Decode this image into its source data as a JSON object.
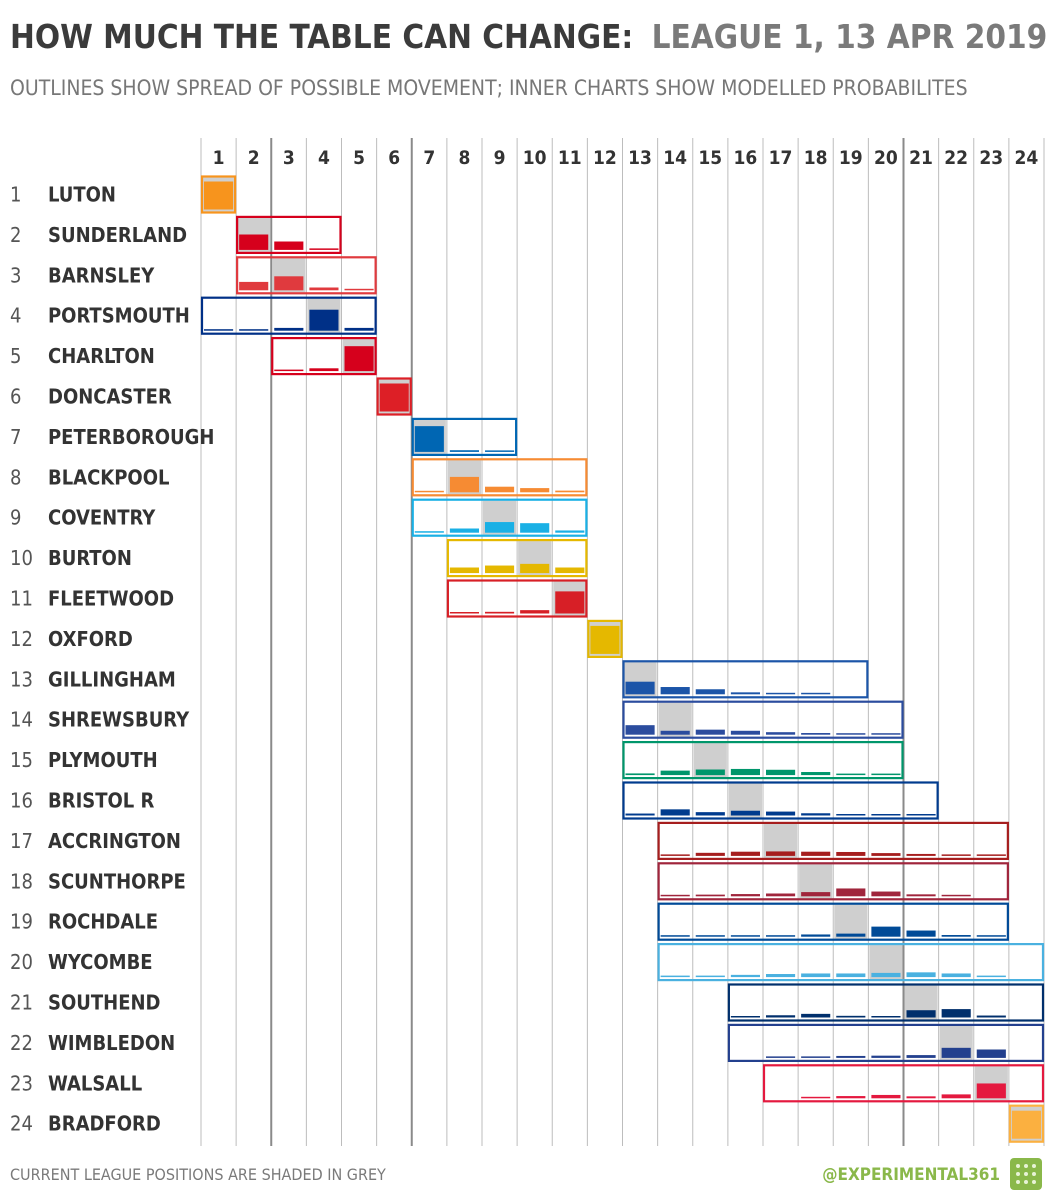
{
  "header": {
    "title_main": "HOW MUCH THE TABLE CAN CHANGE:",
    "title_sub": "LEAGUE 1, 13 APR 2019",
    "subtitle": "OUTLINES SHOW SPREAD OF POSSIBLE MOVEMENT;  INNER CHARTS SHOW MODELLED PROBABILITES"
  },
  "footer": {
    "note": "CURRENT LEAGUE POSITIONS ARE SHADED IN GREY",
    "credit": "@EXPERIMENTAL361",
    "logo_icon": "experimental361-logo-icon"
  },
  "chart_data": {
    "type": "heatmap",
    "columns": [
      "1",
      "2",
      "3",
      "4",
      "5",
      "6",
      "7",
      "8",
      "9",
      "10",
      "11",
      "12",
      "13",
      "14",
      "15",
      "16",
      "17",
      "18",
      "19",
      "20",
      "21",
      "22",
      "23",
      "24"
    ],
    "heavy_divider_after_columns": [
      2,
      6,
      20
    ],
    "value_scale": "probability of finishing position (0-1)",
    "teams": [
      {
        "rank": 1,
        "name": "LUTON",
        "color": "#f7941d",
        "min": 1,
        "max": 1,
        "probs": {
          "1": 1.0
        }
      },
      {
        "rank": 2,
        "name": "SUNDERLAND",
        "color": "#d6001c",
        "min": 2,
        "max": 4,
        "probs": {
          "2": 0.55,
          "3": 0.3,
          "4": 0.03
        }
      },
      {
        "rank": 3,
        "name": "BARNSLEY",
        "color": "#e03a3e",
        "min": 2,
        "max": 5,
        "probs": {
          "2": 0.3,
          "3": 0.5,
          "4": 0.1,
          "5": 0.01
        }
      },
      {
        "rank": 4,
        "name": "PORTSMOUTH",
        "color": "#003087",
        "min": 1,
        "max": 5,
        "probs": {
          "1": 0.01,
          "2": 0.04,
          "3": 0.1,
          "4": 0.75,
          "5": 0.1
        }
      },
      {
        "rank": 5,
        "name": "CHARLTON",
        "color": "#d6001c",
        "min": 3,
        "max": 5,
        "probs": {
          "3": 0.01,
          "4": 0.1,
          "5": 0.89
        }
      },
      {
        "rank": 6,
        "name": "DONCASTER",
        "color": "#dd1f26",
        "min": 6,
        "max": 6,
        "probs": {
          "6": 1.0
        }
      },
      {
        "rank": 7,
        "name": "PETERBOROUGH",
        "color": "#0066b3",
        "min": 7,
        "max": 9,
        "probs": {
          "7": 0.92,
          "8": 0.06,
          "9": 0.02
        }
      },
      {
        "rank": 8,
        "name": "BLACKPOOL",
        "color": "#f68b33",
        "min": 7,
        "max": 11,
        "probs": {
          "7": 0.04,
          "8": 0.55,
          "9": 0.2,
          "10": 0.15,
          "11": 0.06
        }
      },
      {
        "rank": 9,
        "name": "COVENTRY",
        "color": "#1ab0e5",
        "min": 7,
        "max": 11,
        "probs": {
          "7": 0.02,
          "8": 0.15,
          "9": 0.38,
          "10": 0.34,
          "11": 0.08
        }
      },
      {
        "rank": 10,
        "name": "BURTON",
        "color": "#e5b800",
        "min": 8,
        "max": 11,
        "probs": {
          "8": 0.2,
          "9": 0.27,
          "10": 0.33,
          "11": 0.2
        }
      },
      {
        "rank": 11,
        "name": "FLEETWOOD",
        "color": "#d71f26",
        "min": 8,
        "max": 11,
        "probs": {
          "8": 0.03,
          "9": 0.06,
          "10": 0.12,
          "11": 0.79
        }
      },
      {
        "rank": 12,
        "name": "OXFORD",
        "color": "#e5b800",
        "min": 12,
        "max": 12,
        "probs": {
          "12": 1.0
        }
      },
      {
        "rank": 13,
        "name": "GILLINGHAM",
        "color": "#1c55a8",
        "min": 13,
        "max": 19,
        "probs": {
          "13": 0.45,
          "14": 0.26,
          "15": 0.18,
          "16": 0.07,
          "17": 0.03,
          "18": 0.01
        }
      },
      {
        "rank": 14,
        "name": "SHREWSBURY",
        "color": "#2b4c9e",
        "min": 13,
        "max": 20,
        "probs": {
          "13": 0.34,
          "14": 0.14,
          "15": 0.18,
          "16": 0.14,
          "17": 0.09,
          "18": 0.06,
          "19": 0.04,
          "20": 0.01
        }
      },
      {
        "rank": 15,
        "name": "PLYMOUTH",
        "color": "#00966b",
        "min": 13,
        "max": 20,
        "probs": {
          "13": 0.06,
          "14": 0.16,
          "15": 0.2,
          "16": 0.22,
          "17": 0.19,
          "18": 0.11,
          "19": 0.05,
          "20": 0.01
        }
      },
      {
        "rank": 16,
        "name": "BRISTOL R",
        "color": "#003b8e",
        "min": 13,
        "max": 21,
        "probs": {
          "13": 0.07,
          "14": 0.22,
          "15": 0.12,
          "16": 0.17,
          "17": 0.14,
          "18": 0.08,
          "19": 0.05,
          "20": 0.03,
          "21": 0.01
        }
      },
      {
        "rank": 17,
        "name": "ACCRINGTON",
        "color": "#a61e1e",
        "min": 14,
        "max": 23,
        "probs": {
          "14": 0.03,
          "15": 0.11,
          "16": 0.15,
          "17": 0.16,
          "18": 0.15,
          "19": 0.14,
          "20": 0.1,
          "21": 0.07,
          "22": 0.04,
          "23": 0.02
        }
      },
      {
        "rank": 18,
        "name": "SCUNTHORPE",
        "color": "#a0253c",
        "min": 14,
        "max": 23,
        "probs": {
          "14": 0.02,
          "15": 0.06,
          "16": 0.08,
          "17": 0.1,
          "18": 0.15,
          "19": 0.28,
          "20": 0.17,
          "21": 0.07,
          "22": 0.02
        }
      },
      {
        "rank": 19,
        "name": "ROCHDALE",
        "color": "#004a97",
        "min": 14,
        "max": 23,
        "probs": {
          "14": 0.02,
          "15": 0.03,
          "16": 0.04,
          "17": 0.05,
          "18": 0.08,
          "19": 0.11,
          "20": 0.36,
          "21": 0.22,
          "22": 0.06,
          "23": 0.01
        }
      },
      {
        "rank": 20,
        "name": "WYCOMBE",
        "color": "#4ab1e0",
        "min": 14,
        "max": 24,
        "probs": {
          "14": 0.02,
          "15": 0.04,
          "16": 0.08,
          "17": 0.11,
          "18": 0.13,
          "19": 0.13,
          "20": 0.15,
          "21": 0.17,
          "22": 0.13,
          "23": 0.04
        }
      },
      {
        "rank": 21,
        "name": "SOUTHEND",
        "color": "#002f6c",
        "min": 16,
        "max": 24,
        "probs": {
          "16": 0.02,
          "17": 0.08,
          "18": 0.13,
          "19": 0.06,
          "20": 0.03,
          "21": 0.26,
          "22": 0.3,
          "23": 0.07
        }
      },
      {
        "rank": 22,
        "name": "WIMBLEDON",
        "color": "#23408e",
        "min": 16,
        "max": 24,
        "probs": {
          "17": 0.03,
          "18": 0.05,
          "19": 0.07,
          "20": 0.08,
          "21": 0.1,
          "22": 0.36,
          "23": 0.3
        }
      },
      {
        "rank": 23,
        "name": "WALSALL",
        "color": "#e4193f",
        "min": 17,
        "max": 24,
        "probs": {
          "18": 0.03,
          "19": 0.08,
          "20": 0.12,
          "21": 0.07,
          "22": 0.14,
          "23": 0.53
        }
      },
      {
        "rank": 24,
        "name": "BRADFORD",
        "color": "#fbb040",
        "min": 24,
        "max": 24,
        "probs": {
          "24": 1.0
        }
      }
    ]
  }
}
